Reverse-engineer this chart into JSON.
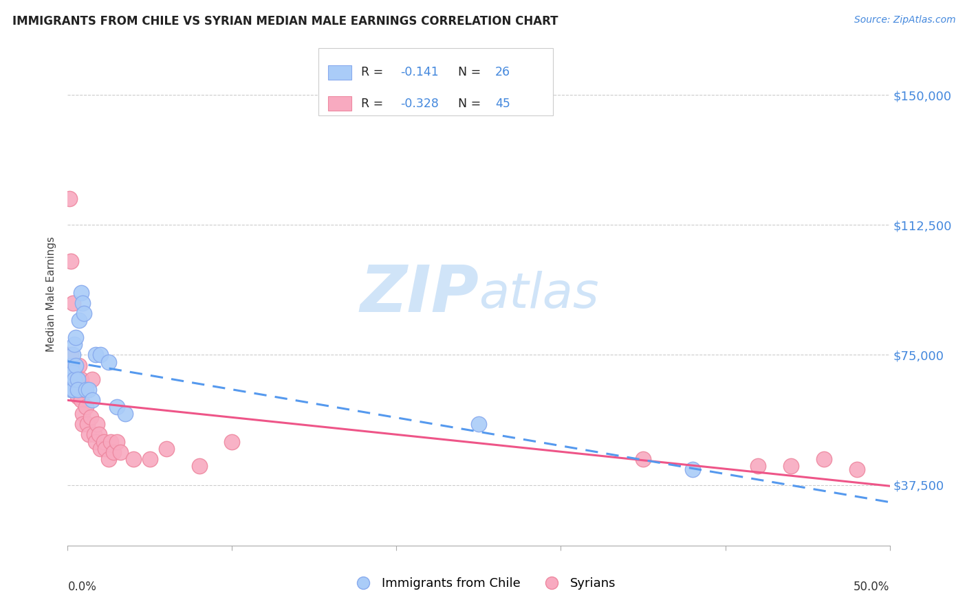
{
  "title": "IMMIGRANTS FROM CHILE VS SYRIAN MEDIAN MALE EARNINGS CORRELATION CHART",
  "source": "Source: ZipAtlas.com",
  "ylabel": "Median Male Earnings",
  "xlim": [
    0.0,
    0.5
  ],
  "ylim": [
    20000,
    165000
  ],
  "yticks": [
    37500,
    75000,
    112500,
    150000
  ],
  "ytick_labels": [
    "$37,500",
    "$75,000",
    "$112,500",
    "$150,000"
  ],
  "chile_color": "#aaccf8",
  "chile_edge_color": "#88aaee",
  "syrian_color": "#f8aac0",
  "syrian_edge_color": "#ee88a0",
  "chile_R": -0.141,
  "chile_N": 26,
  "syrian_R": -0.328,
  "syrian_N": 45,
  "chile_line_color": "#5599ee",
  "syrian_line_color": "#ee5588",
  "watermark_zip": "ZIP",
  "watermark_atlas": "atlas",
  "watermark_color": "#d0e4f8",
  "legend_text_color": "#4488dd",
  "chile_scatter_x": [
    0.001,
    0.002,
    0.002,
    0.003,
    0.003,
    0.003,
    0.004,
    0.004,
    0.005,
    0.005,
    0.006,
    0.006,
    0.007,
    0.008,
    0.009,
    0.01,
    0.011,
    0.013,
    0.015,
    0.017,
    0.02,
    0.025,
    0.03,
    0.035,
    0.25,
    0.38
  ],
  "chile_scatter_y": [
    68000,
    72000,
    65000,
    75000,
    70000,
    65000,
    78000,
    68000,
    80000,
    72000,
    68000,
    65000,
    85000,
    93000,
    90000,
    87000,
    65000,
    65000,
    62000,
    75000,
    75000,
    73000,
    60000,
    58000,
    55000,
    42000
  ],
  "syrian_scatter_x": [
    0.001,
    0.002,
    0.002,
    0.003,
    0.003,
    0.004,
    0.004,
    0.005,
    0.005,
    0.006,
    0.006,
    0.007,
    0.007,
    0.008,
    0.008,
    0.009,
    0.009,
    0.01,
    0.011,
    0.012,
    0.013,
    0.014,
    0.015,
    0.016,
    0.017,
    0.018,
    0.019,
    0.02,
    0.022,
    0.023,
    0.025,
    0.026,
    0.028,
    0.03,
    0.032,
    0.04,
    0.05,
    0.06,
    0.08,
    0.1,
    0.35,
    0.42,
    0.44,
    0.46,
    0.48
  ],
  "syrian_scatter_y": [
    120000,
    102000,
    75000,
    90000,
    70000,
    65000,
    72000,
    65000,
    72000,
    68000,
    63000,
    65000,
    72000,
    62000,
    68000,
    58000,
    55000,
    65000,
    60000,
    55000,
    52000,
    57000,
    68000,
    52000,
    50000,
    55000,
    52000,
    48000,
    50000,
    48000,
    45000,
    50000,
    47000,
    50000,
    47000,
    45000,
    45000,
    48000,
    43000,
    50000,
    45000,
    43000,
    43000,
    45000,
    42000
  ]
}
